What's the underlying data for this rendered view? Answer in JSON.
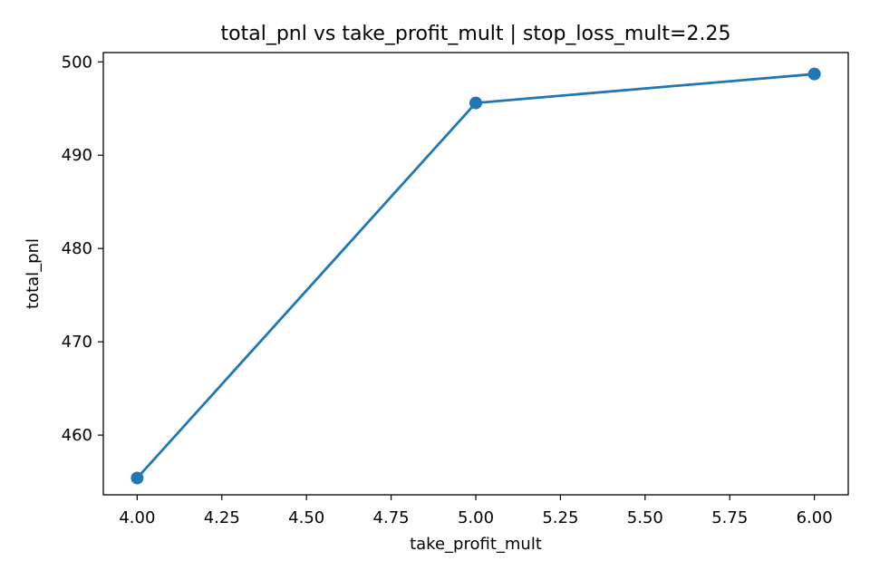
{
  "chart_data": {
    "type": "line",
    "title": "total_pnl vs take_profit_mult | stop_loss_mult=2.25",
    "xlabel": "take_profit_mult",
    "ylabel": "total_pnl",
    "x_ticks": [
      "4.00",
      "4.25",
      "4.50",
      "4.75",
      "5.00",
      "5.25",
      "5.50",
      "5.75",
      "6.00"
    ],
    "y_ticks": [
      "460",
      "470",
      "480",
      "490",
      "500"
    ],
    "xlim": [
      3.9,
      6.1
    ],
    "ylim": [
      453.6,
      501.0
    ],
    "grid": false,
    "series": [
      {
        "x": [
          4.0,
          5.0,
          6.0
        ],
        "y": [
          455.4,
          495.6,
          498.7
        ],
        "color": "#1f77b4",
        "marker": "circle"
      }
    ]
  }
}
